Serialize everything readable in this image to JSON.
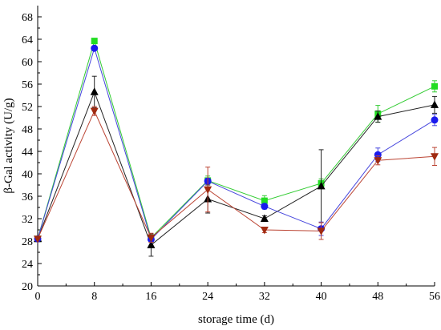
{
  "chart_data": {
    "type": "line",
    "xlabel": "storage time (d)",
    "ylabel": "β-Gal activity (U/g)",
    "x": [
      0,
      8,
      16,
      24,
      32,
      40,
      48,
      56
    ],
    "xlim": [
      0,
      56
    ],
    "ylim": [
      20,
      70
    ],
    "xticks": [
      0,
      8,
      16,
      24,
      32,
      40,
      48,
      56
    ],
    "yticks": [
      20,
      24,
      28,
      32,
      36,
      40,
      44,
      48,
      52,
      56,
      60,
      64,
      68
    ],
    "grid": false,
    "series": [
      {
        "marker": "square",
        "color": "#33cc33",
        "markerColor": "#22dd22",
        "values": [
          28.4,
          63.7,
          28.6,
          38.8,
          35.2,
          38.3,
          50.7,
          55.6
        ],
        "errors": [
          0,
          0.3,
          0.5,
          0.8,
          0.9,
          0.8,
          1.5,
          1.0
        ]
      },
      {
        "marker": "triangle-up",
        "color": "#222222",
        "markerColor": "#000000",
        "values": [
          28.4,
          54.6,
          27.3,
          35.5,
          32.0,
          37.8,
          50.2,
          52.3
        ],
        "errors": [
          0,
          2.8,
          2.0,
          2.5,
          0.5,
          6.5,
          1.0,
          1.5
        ]
      },
      {
        "marker": "circle",
        "color": "#4444dd",
        "markerColor": "#1a1aee",
        "values": [
          28.4,
          62.4,
          28.3,
          38.7,
          34.2,
          30.2,
          43.4,
          49.6
        ],
        "errors": [
          0,
          0.3,
          0.5,
          0.5,
          0.5,
          1.2,
          1.2,
          1.0
        ]
      },
      {
        "marker": "triangle-down",
        "color": "#bb4433",
        "markerColor": "#a02a10",
        "values": [
          28.4,
          51.2,
          28.6,
          37.2,
          30.0,
          29.8,
          42.4,
          43.1
        ],
        "errors": [
          0,
          0.8,
          0.8,
          4.0,
          0.5,
          1.5,
          0.8,
          1.6
        ]
      }
    ]
  }
}
